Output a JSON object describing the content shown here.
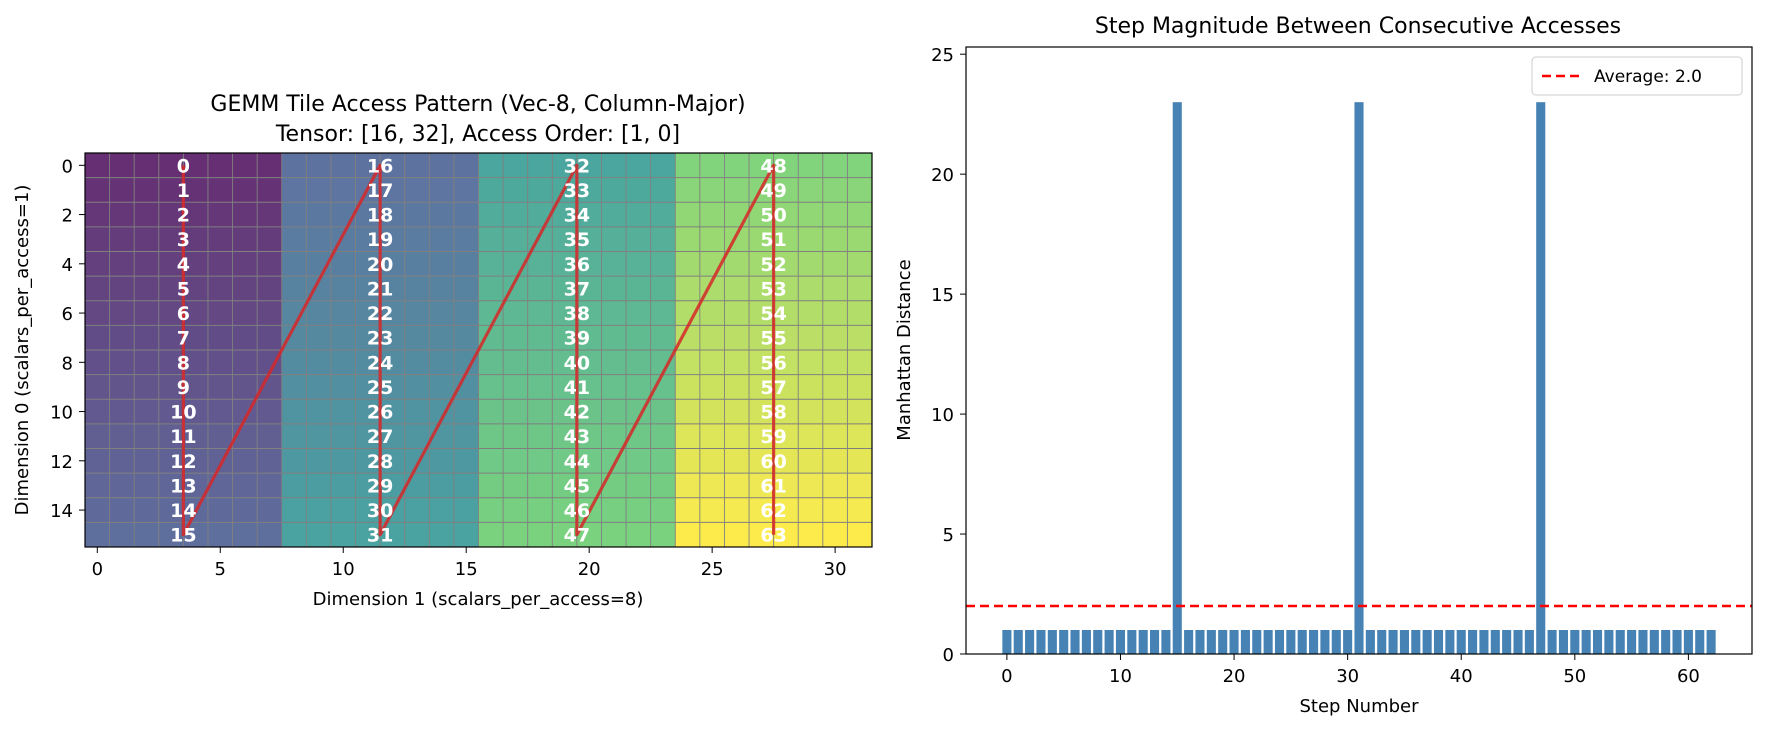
{
  "chart_data": [
    {
      "type": "heatmap",
      "title_line1": "GEMM Tile Access Pattern (Vec-8, Column-Major)",
      "title_line2": "Tensor: [16, 32], Access Order: [1, 0]",
      "xlabel": "Dimension 1 (scalars_per_access=8)",
      "ylabel": "Dimension 0 (scalars_per_access=1)",
      "rows": 16,
      "cols": 32,
      "scalars_per_access": [
        1,
        8
      ],
      "xlim": [
        -0.5,
        31.5
      ],
      "ylim": [
        15.5,
        -0.5
      ],
      "xticks": [
        0,
        5,
        10,
        15,
        20,
        25,
        30
      ],
      "yticks": [
        0,
        2,
        4,
        6,
        8,
        10,
        12,
        14
      ],
      "grid": true,
      "colormap": "viridis",
      "path_color": "#d62728",
      "label_color": "#ffffff",
      "column_groups": [
        {
          "col_start": 0,
          "col_end": 7,
          "label_col": 3.5,
          "access_ids": [
            0,
            1,
            2,
            3,
            4,
            5,
            6,
            7,
            8,
            9,
            10,
            11,
            12,
            13,
            14,
            15
          ]
        },
        {
          "col_start": 8,
          "col_end": 15,
          "label_col": 11.5,
          "access_ids": [
            16,
            17,
            18,
            19,
            20,
            21,
            22,
            23,
            24,
            25,
            26,
            27,
            28,
            29,
            30,
            31
          ]
        },
        {
          "col_start": 16,
          "col_end": 23,
          "label_col": 19.5,
          "access_ids": [
            32,
            33,
            34,
            35,
            36,
            37,
            38,
            39,
            40,
            41,
            42,
            43,
            44,
            45,
            46,
            47
          ]
        },
        {
          "col_start": 24,
          "col_end": 31,
          "label_col": 27.5,
          "access_ids": [
            48,
            49,
            50,
            51,
            52,
            53,
            54,
            55,
            56,
            57,
            58,
            59,
            60,
            61,
            62,
            63
          ]
        }
      ]
    },
    {
      "type": "bar",
      "title": "Step Magnitude Between Consecutive Accesses",
      "xlabel": "Step Number",
      "ylabel": "Manhattan Distance",
      "x": [
        0,
        1,
        2,
        3,
        4,
        5,
        6,
        7,
        8,
        9,
        10,
        11,
        12,
        13,
        14,
        15,
        16,
        17,
        18,
        19,
        20,
        21,
        22,
        23,
        24,
        25,
        26,
        27,
        28,
        29,
        30,
        31,
        32,
        33,
        34,
        35,
        36,
        37,
        38,
        39,
        40,
        41,
        42,
        43,
        44,
        45,
        46,
        47,
        48,
        49,
        50,
        51,
        52,
        53,
        54,
        55,
        56,
        57,
        58,
        59,
        60,
        61,
        62
      ],
      "values": [
        1,
        1,
        1,
        1,
        1,
        1,
        1,
        1,
        1,
        1,
        1,
        1,
        1,
        1,
        1,
        23,
        1,
        1,
        1,
        1,
        1,
        1,
        1,
        1,
        1,
        1,
        1,
        1,
        1,
        1,
        1,
        23,
        1,
        1,
        1,
        1,
        1,
        1,
        1,
        1,
        1,
        1,
        1,
        1,
        1,
        1,
        1,
        23,
        1,
        1,
        1,
        1,
        1,
        1,
        1,
        1,
        1,
        1,
        1,
        1,
        1,
        1,
        1
      ],
      "xlim": [
        -3.6,
        65.6
      ],
      "ylim": [
        0,
        25.3
      ],
      "xticks": [
        0,
        10,
        20,
        30,
        40,
        50,
        60
      ],
      "yticks": [
        0,
        5,
        10,
        15,
        20,
        25
      ],
      "bar_color": "#4682b4",
      "average": 2.0,
      "average_label": "Average: 2.0",
      "average_color": "#ff0000",
      "legend_position": "upper-right"
    }
  ]
}
